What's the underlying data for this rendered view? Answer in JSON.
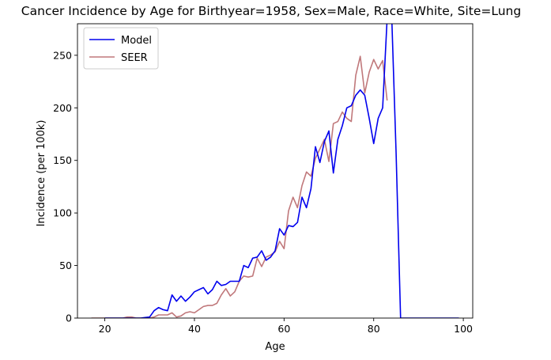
{
  "chart_data": {
    "type": "line",
    "title": "Cancer Incidence by Age for Birthyear=1958, Sex=Male, Race=White, Site=Lung",
    "xlabel": "Age",
    "ylabel": "Incidence (per 100k)",
    "xlim": [
      13.9,
      102.1
    ],
    "ylim": [
      0,
      280
    ],
    "xticks": [
      20,
      40,
      60,
      80,
      100
    ],
    "yticks": [
      0,
      50,
      100,
      150,
      200,
      250
    ],
    "grid": false,
    "legend": "top-left",
    "series": [
      {
        "name": "Model",
        "color": "#0000ee",
        "points": [
          [
            20,
            0
          ],
          [
            21,
            0
          ],
          [
            22,
            0
          ],
          [
            23,
            0
          ],
          [
            24,
            0
          ],
          [
            25,
            0
          ],
          [
            26,
            0
          ],
          [
            27,
            0
          ],
          [
            28,
            0
          ],
          [
            29,
            0.5
          ],
          [
            30,
            1
          ],
          [
            31,
            7
          ],
          [
            32,
            10
          ],
          [
            33,
            8
          ],
          [
            34,
            7
          ],
          [
            35,
            22
          ],
          [
            36,
            16
          ],
          [
            37,
            21
          ],
          [
            38,
            16
          ],
          [
            39,
            20
          ],
          [
            40,
            25
          ],
          [
            41,
            27
          ],
          [
            42,
            29
          ],
          [
            43,
            23
          ],
          [
            44,
            27
          ],
          [
            45,
            35
          ],
          [
            46,
            31
          ],
          [
            47,
            32
          ],
          [
            48,
            35
          ],
          [
            49,
            35
          ],
          [
            50,
            35
          ],
          [
            51,
            50
          ],
          [
            52,
            48
          ],
          [
            53,
            57
          ],
          [
            54,
            58
          ],
          [
            55,
            64
          ],
          [
            56,
            55
          ],
          [
            57,
            58
          ],
          [
            58,
            64
          ],
          [
            59,
            85
          ],
          [
            60,
            79
          ],
          [
            61,
            88
          ],
          [
            62,
            87
          ],
          [
            63,
            91
          ],
          [
            64,
            115
          ],
          [
            65,
            105
          ],
          [
            66,
            123
          ],
          [
            67,
            163
          ],
          [
            68,
            148
          ],
          [
            69,
            168
          ],
          [
            70,
            178
          ],
          [
            71,
            138
          ],
          [
            72,
            170
          ],
          [
            73,
            183
          ],
          [
            74,
            200
          ],
          [
            75,
            202
          ],
          [
            76,
            212
          ],
          [
            77,
            217
          ],
          [
            78,
            212
          ],
          [
            79,
            190
          ],
          [
            80,
            166
          ],
          [
            81,
            190
          ],
          [
            82,
            200
          ],
          [
            83,
            285
          ],
          [
            84,
            290
          ],
          [
            85,
            157
          ],
          [
            86,
            0
          ],
          [
            87,
            0
          ],
          [
            88,
            0
          ],
          [
            89,
            0
          ],
          [
            90,
            0
          ],
          [
            91,
            0
          ],
          [
            92,
            0
          ],
          [
            93,
            0
          ],
          [
            94,
            0
          ],
          [
            95,
            0
          ],
          [
            96,
            0
          ],
          [
            97,
            0
          ],
          [
            98,
            0
          ],
          [
            99,
            0
          ]
        ]
      },
      {
        "name": "SEER",
        "color": "#c0787b",
        "points": [
          [
            17,
            0
          ],
          [
            18,
            0
          ],
          [
            19,
            0
          ],
          [
            20,
            0
          ],
          [
            21,
            0
          ],
          [
            22,
            0
          ],
          [
            23,
            0
          ],
          [
            24,
            0
          ],
          [
            25,
            1
          ],
          [
            26,
            1
          ],
          [
            27,
            0
          ],
          [
            28,
            0
          ],
          [
            29,
            0
          ],
          [
            30,
            0
          ],
          [
            31,
            1
          ],
          [
            32,
            3
          ],
          [
            33,
            3
          ],
          [
            34,
            3
          ],
          [
            35,
            5
          ],
          [
            36,
            1
          ],
          [
            37,
            2
          ],
          [
            38,
            5
          ],
          [
            39,
            6
          ],
          [
            40,
            5
          ],
          [
            41,
            8
          ],
          [
            42,
            11
          ],
          [
            43,
            12
          ],
          [
            44,
            12
          ],
          [
            45,
            14
          ],
          [
            46,
            22
          ],
          [
            47,
            28
          ],
          [
            48,
            21
          ],
          [
            49,
            25
          ],
          [
            50,
            35
          ],
          [
            51,
            40
          ],
          [
            52,
            39
          ],
          [
            53,
            40
          ],
          [
            54,
            57
          ],
          [
            55,
            49
          ],
          [
            56,
            58
          ],
          [
            57,
            60
          ],
          [
            58,
            63
          ],
          [
            59,
            73
          ],
          [
            60,
            66
          ],
          [
            61,
            102
          ],
          [
            62,
            115
          ],
          [
            63,
            105
          ],
          [
            64,
            126
          ],
          [
            65,
            139
          ],
          [
            66,
            135
          ],
          [
            67,
            152
          ],
          [
            68,
            161
          ],
          [
            69,
            170
          ],
          [
            70,
            149
          ],
          [
            71,
            185
          ],
          [
            72,
            187
          ],
          [
            73,
            196
          ],
          [
            74,
            190
          ],
          [
            75,
            187
          ],
          [
            76,
            231
          ],
          [
            77,
            249
          ],
          [
            78,
            214
          ],
          [
            79,
            234
          ],
          [
            80,
            246
          ],
          [
            81,
            237
          ],
          [
            82,
            245
          ],
          [
            83,
            207
          ]
        ]
      }
    ]
  }
}
